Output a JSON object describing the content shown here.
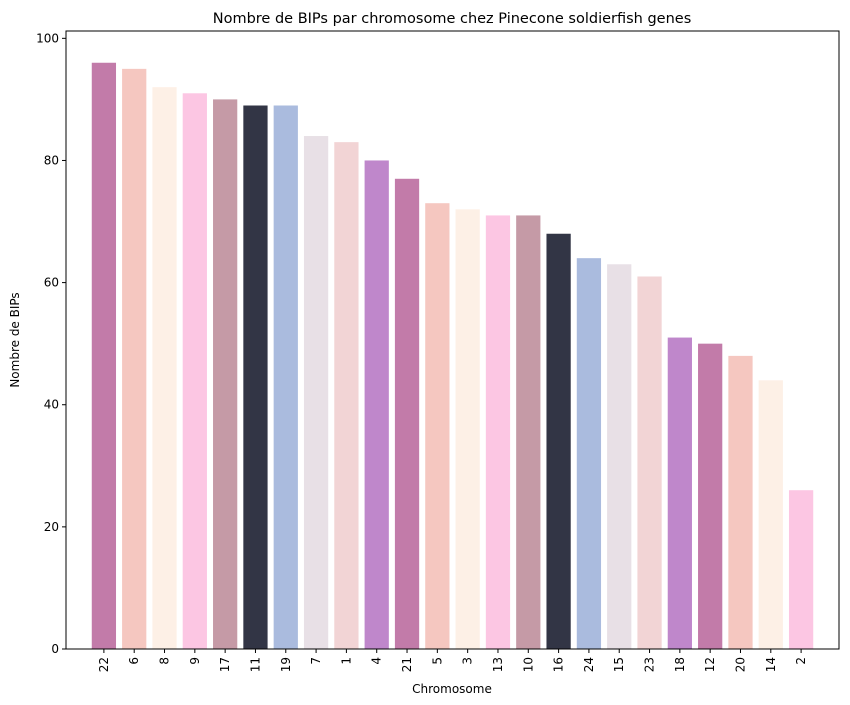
{
  "chart_data": {
    "type": "bar",
    "title": "Nombre de BIPs par chromosome chez Pinecone soldierfish genes",
    "xlabel": "Chromosome",
    "ylabel": "Nombre de BIPs",
    "categories": [
      "22",
      "6",
      "8",
      "9",
      "17",
      "11",
      "19",
      "7",
      "1",
      "4",
      "21",
      "5",
      "3",
      "13",
      "10",
      "16",
      "24",
      "15",
      "23",
      "18",
      "12",
      "20",
      "14",
      "2"
    ],
    "values": [
      96,
      95,
      92,
      91,
      90,
      89,
      89,
      84,
      83,
      80,
      77,
      73,
      72,
      71,
      71,
      68,
      64,
      63,
      61,
      51,
      50,
      48,
      44,
      26
    ],
    "colors": [
      "#c27ba9",
      "#f5c7c0",
      "#fdf0e6",
      "#fcc6e3",
      "#c59aa6",
      "#323545",
      "#aabbde",
      "#e8e0e6",
      "#f2d4d5",
      "#bf87cb",
      "#c27ba9",
      "#f5c7c0",
      "#fdf0e6",
      "#fcc6e3",
      "#c59aa6",
      "#323545",
      "#aabbde",
      "#e8e0e6",
      "#f2d4d5",
      "#bf87cb",
      "#c27ba9",
      "#f5c7c0",
      "#fdf0e6",
      "#fcc6e3"
    ],
    "ylim": [
      0,
      100
    ],
    "yticks": [
      0,
      20,
      40,
      60,
      80,
      100
    ],
    "grid": false,
    "legend": "none"
  }
}
